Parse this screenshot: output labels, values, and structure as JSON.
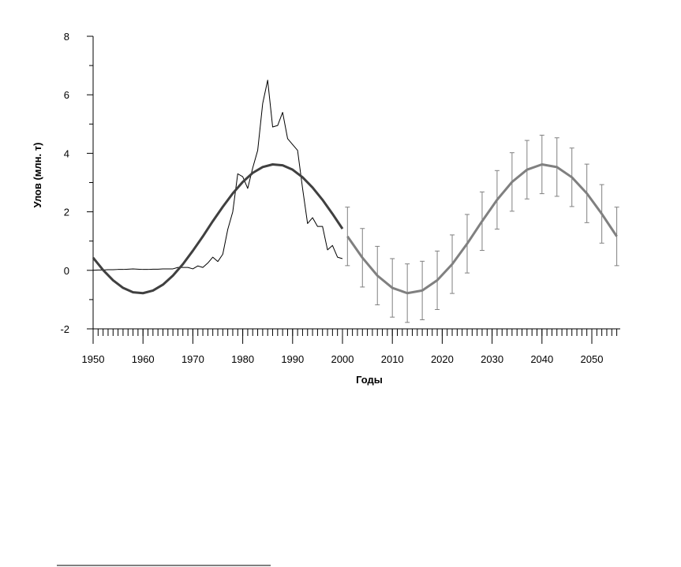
{
  "chart_data": {
    "type": "line",
    "xlabel": "Годы",
    "ylabel": "Улов (млн. т)",
    "xlim": [
      1950,
      2055
    ],
    "xticks": [
      1950,
      1960,
      1970,
      1980,
      1990,
      2000,
      2010,
      2020,
      2030,
      2040,
      2050
    ],
    "ylim": [
      -2,
      8
    ],
    "yticks": [
      -2,
      0,
      2,
      4,
      6,
      8
    ],
    "series": [
      {
        "color": "#000000",
        "width": 1,
        "x": [
          1950,
          1951,
          1952,
          1953,
          1954,
          1955,
          1956,
          1957,
          1958,
          1959,
          1960,
          1961,
          1962,
          1963,
          1964,
          1965,
          1966,
          1967,
          1968,
          1969,
          1970,
          1971,
          1972,
          1973,
          1974,
          1975,
          1976,
          1977,
          1978,
          1979,
          1980,
          1981,
          1982,
          1983,
          1984,
          1985,
          1986,
          1987,
          1988,
          1989,
          1990,
          1991,
          1992,
          1993,
          1994,
          1995,
          1996,
          1997,
          1998,
          1999,
          2000
        ],
        "values": [
          0,
          0.01,
          0.01,
          0.02,
          0.02,
          0.03,
          0.03,
          0.04,
          0.05,
          0.04,
          0.03,
          0.03,
          0.04,
          0.04,
          0.05,
          0.05,
          0.05,
          0.1,
          0.1,
          0.1,
          0.05,
          0.15,
          0.1,
          0.25,
          0.45,
          0.3,
          0.55,
          1.4,
          2.0,
          3.3,
          3.2,
          2.8,
          3.5,
          4.1,
          5.7,
          6.5,
          4.9,
          4.95,
          5.4,
          4.5,
          4.3,
          4.1,
          2.8,
          1.6,
          1.8,
          1.5,
          1.5,
          0.7,
          0.85,
          0.45,
          0.4
        ]
      },
      {
        "color": "#404040",
        "width": 3,
        "x": [
          1950,
          1952,
          1954,
          1956,
          1958,
          1960,
          1962,
          1964,
          1966,
          1968,
          1970,
          1972,
          1974,
          1976,
          1978,
          1980,
          1982,
          1984,
          1986,
          1988,
          1990,
          1992,
          1994,
          1996,
          1998,
          2000
        ],
        "values": [
          0.43,
          0.01,
          -0.34,
          -0.6,
          -0.75,
          -0.78,
          -0.69,
          -0.49,
          -0.18,
          0.21,
          0.67,
          1.16,
          1.68,
          2.17,
          2.63,
          3.02,
          3.33,
          3.53,
          3.62,
          3.59,
          3.44,
          3.18,
          2.83,
          2.41,
          1.93,
          1.42
        ]
      },
      {
        "color": "#808080",
        "width": 3,
        "x": [
          2001,
          2004,
          2007,
          2010,
          2013,
          2016,
          2019,
          2022,
          2025,
          2028,
          2031,
          2034,
          2037,
          2040,
          2043,
          2046,
          2049,
          2052,
          2055
        ],
        "values": [
          1.16,
          0.43,
          -0.18,
          -0.6,
          -0.78,
          -0.69,
          -0.34,
          0.21,
          0.91,
          1.68,
          2.41,
          3.02,
          3.44,
          3.62,
          3.53,
          3.18,
          2.63,
          1.93,
          1.16
        ],
        "errors": [
          1,
          1,
          1,
          1,
          1,
          1,
          1,
          1,
          1,
          1,
          1,
          1,
          1,
          1,
          1,
          1,
          1,
          1,
          1
        ]
      }
    ]
  }
}
